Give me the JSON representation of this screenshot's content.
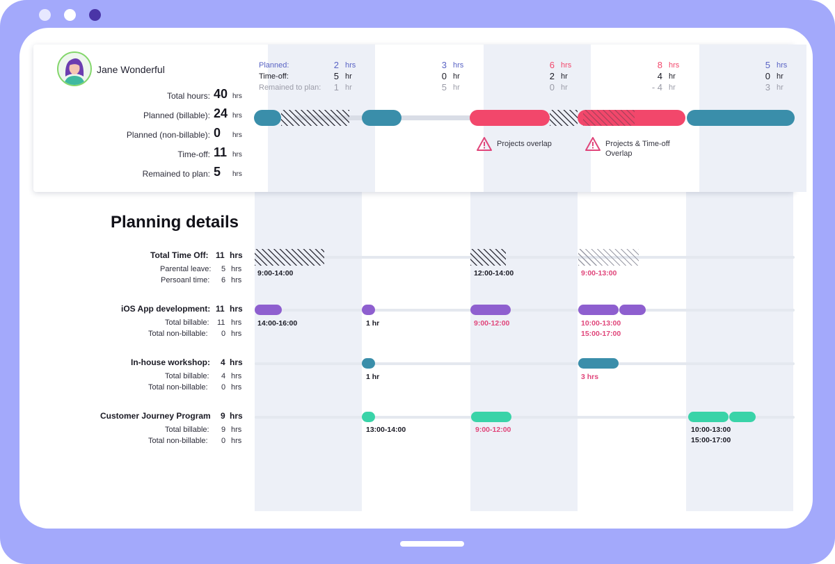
{
  "window": {
    "dots": [
      "#e7e8ff",
      "#ffffff",
      "#4a35a7"
    ]
  },
  "colors": {
    "frame": "#a3a9fb",
    "purple": "#8e5fcf",
    "teal": "#3a8eaa",
    "green": "#39d3a8",
    "red": "#f2476b",
    "blue": "#5963c4",
    "pink": "#e0457a"
  },
  "user": {
    "name": "Jane Wonderful",
    "avatar_icon": "user-avatar-icon"
  },
  "summary": [
    {
      "label": "Total hours:",
      "value": "40",
      "unit": "hrs"
    },
    {
      "label": "Planned (billable):",
      "value": "24",
      "unit": "hrs"
    },
    {
      "label": "Planned (non-billable):",
      "value": "0",
      "unit": "hrs"
    },
    {
      "label": "Time-off:",
      "value": "11",
      "unit": "hrs"
    },
    {
      "label": "Remained to plan:",
      "value": "5",
      "unit": "hrs"
    }
  ],
  "stat_labels": {
    "planned": "Planned:",
    "timeoff": "Time-off:",
    "remained": "Remained to plan:"
  },
  "days": [
    {
      "planned": "2",
      "planned_unit": "hrs",
      "timeoff": "5",
      "timeoff_unit": "hr",
      "remained": "1",
      "remained_unit": "hr"
    },
    {
      "planned": "3",
      "planned_unit": "hrs",
      "timeoff": "0",
      "timeoff_unit": "hr",
      "remained": "5",
      "remained_unit": "hr"
    },
    {
      "planned": "6",
      "planned_unit": "hrs",
      "timeoff": "2",
      "timeoff_unit": "hr",
      "remained": "0",
      "remained_unit": "hr"
    },
    {
      "planned": "8",
      "planned_unit": "hrs",
      "timeoff": "4",
      "timeoff_unit": "hr",
      "remained": "- 4",
      "remained_unit": "hr"
    },
    {
      "planned": "5",
      "planned_unit": "hrs",
      "timeoff": "0",
      "timeoff_unit": "hr",
      "remained": "3",
      "remained_unit": "hr"
    }
  ],
  "warnings": [
    {
      "text": "Projects overlap",
      "icon": "warning-icon"
    },
    {
      "line1": "Projects & Time-off",
      "line2": "Overlap",
      "icon": "warning-icon"
    }
  ],
  "details": {
    "title": "Planning details",
    "time_off": {
      "title": "Total Time Off:",
      "total": "11",
      "unit": "hrs",
      "lines": [
        {
          "label": "Parental leave:",
          "value": "5",
          "unit": "hrs"
        },
        {
          "label": "Persoanl time:",
          "value": "6",
          "unit": "hrs"
        }
      ],
      "slots": [
        "9:00-14:00",
        "12:00-14:00",
        "9:00-13:00"
      ]
    },
    "ios": {
      "title": "iOS App development:",
      "total": "11",
      "unit": "hrs",
      "lines": [
        {
          "label": "Total billable:",
          "value": "11",
          "unit": "hrs"
        },
        {
          "label": "Total non-billable:",
          "value": "0",
          "unit": "hrs"
        }
      ],
      "slots": [
        "14:00-16:00",
        "1 hr",
        "9:00-12:00",
        "10:00-13:00",
        "15:00-17:00"
      ]
    },
    "workshop": {
      "title": "In-house workshop:",
      "total": "4",
      "unit": "hrs",
      "lines": [
        {
          "label": "Total billable:",
          "value": "4",
          "unit": "hrs"
        },
        {
          "label": "Total non-billable:",
          "value": "0",
          "unit": "hrs"
        }
      ],
      "slots": [
        "1 hr",
        "3 hrs"
      ]
    },
    "journey": {
      "title": "Customer Journey Program",
      "total": "9",
      "unit": "hrs",
      "lines": [
        {
          "label": "Total billable:",
          "value": "9",
          "unit": "hrs"
        },
        {
          "label": "Total non-billable:",
          "value": "0",
          "unit": "hrs"
        }
      ],
      "slots": [
        "13:00-14:00",
        "9:00-12:00",
        "10:00-13:00",
        "15:00-17:00"
      ]
    }
  }
}
